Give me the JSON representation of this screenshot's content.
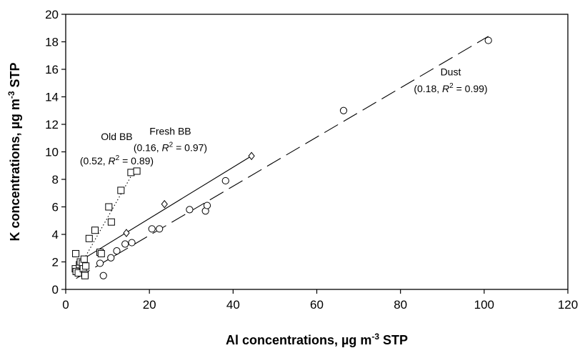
{
  "chart_data": {
    "type": "scatter",
    "xlabel": {
      "main": "Al concentrations, µg m",
      "sup": "-3",
      "tail": " STP"
    },
    "ylabel": {
      "main": "K concentrations, µg m",
      "sup": "-3",
      "tail": " STP"
    },
    "xlim": [
      0,
      120
    ],
    "ylim": [
      0,
      20
    ],
    "xticks": [
      0,
      20,
      40,
      60,
      80,
      100,
      120
    ],
    "yticks": [
      0,
      2,
      4,
      6,
      8,
      10,
      12,
      14,
      16,
      18,
      20
    ],
    "grid": false,
    "legend": "none",
    "series": [
      {
        "marker": "square",
        "line_style": "dotted",
        "points": [
          [
            2.4,
            2.6
          ],
          [
            2.3,
            1.5
          ],
          [
            2.5,
            1.3
          ],
          [
            3.0,
            1.2
          ],
          [
            3.3,
            1.8
          ],
          [
            3.5,
            2.0
          ],
          [
            4.0,
            1.9
          ],
          [
            4.2,
            1.5
          ],
          [
            4.4,
            2.2
          ],
          [
            4.6,
            1.1
          ],
          [
            4.6,
            1.0
          ],
          [
            4.8,
            1.7
          ],
          [
            5.6,
            3.7
          ],
          [
            7.0,
            4.3
          ],
          [
            8.2,
            2.7
          ],
          [
            8.5,
            2.6
          ],
          [
            10.3,
            6.0
          ],
          [
            10.9,
            4.9
          ],
          [
            13.2,
            7.2
          ],
          [
            15.6,
            8.5
          ],
          [
            17.0,
            8.6
          ]
        ],
        "fit": [
          [
            2.5,
            1.2
          ],
          [
            16.5,
            8.7
          ]
        ]
      },
      {
        "marker": "diamond",
        "line_style": "solid",
        "points": [
          [
            14.5,
            4.1
          ],
          [
            23.6,
            6.2
          ],
          [
            44.4,
            9.7
          ]
        ],
        "fit": [
          [
            2.5,
            1.9
          ],
          [
            44.4,
            9.7
          ]
        ]
      },
      {
        "marker": "circle",
        "line_style": "long-dash",
        "points": [
          [
            8.2,
            1.9
          ],
          [
            9.0,
            1.0
          ],
          [
            10.8,
            2.3
          ],
          [
            12.2,
            2.8
          ],
          [
            14.2,
            3.3
          ],
          [
            15.8,
            3.4
          ],
          [
            20.6,
            4.4
          ],
          [
            22.4,
            4.4
          ],
          [
            29.6,
            5.8
          ],
          [
            33.4,
            5.7
          ],
          [
            33.8,
            6.1
          ],
          [
            38.2,
            7.9
          ],
          [
            66.4,
            13.0
          ],
          [
            101.0,
            18.1
          ]
        ],
        "fit": [
          [
            2.5,
            0.8
          ],
          [
            101.0,
            18.4
          ]
        ]
      }
    ],
    "annotations": [
      {
        "line1": "Old BB",
        "pre": "(0.52, ",
        "italic": "R",
        "sup": "2",
        "post": " = 0.89)"
      },
      {
        "line1": "Fresh BB",
        "pre": "(0.16, ",
        "italic": "R",
        "sup": "2",
        "post": " = 0.97)"
      },
      {
        "line1": "Dust",
        "pre": "(0.18, ",
        "italic": "R",
        "sup": "2",
        "post": " = 0.99)"
      }
    ]
  }
}
